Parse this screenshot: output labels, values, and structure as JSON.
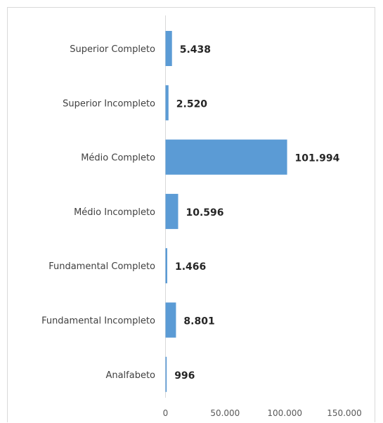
{
  "chart_data": {
    "type": "bar",
    "orientation": "horizontal",
    "categories": [
      "Superior Completo",
      "Superior Incompleto",
      "Médio Completo",
      "Médio Incompleto",
      "Fundamental Completo",
      "Fundamental Incompleto",
      "Analfabeto"
    ],
    "values": [
      5438,
      2520,
      101994,
      10596,
      1466,
      8801,
      996
    ],
    "value_labels": [
      "5.438",
      "2.520",
      "101.994",
      "10.596",
      "1.466",
      "8.801",
      "996"
    ],
    "xlim": [
      0,
      150000
    ],
    "xticks": [
      0,
      50000,
      100000,
      150000
    ],
    "xtick_labels": [
      "0",
      "50.000",
      "100.000",
      "150.000"
    ],
    "bar_color": "#5b9bd5",
    "grid": false,
    "legend": "none"
  }
}
